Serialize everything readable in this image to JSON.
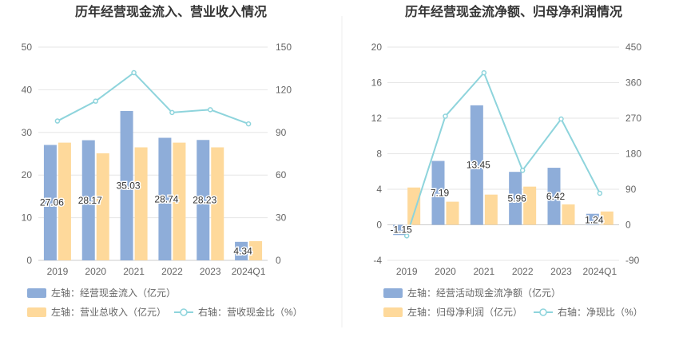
{
  "chart_data": [
    {
      "type": "bar",
      "title": "历年经营现金流入、营业收入情况",
      "categories": [
        "2019",
        "2020",
        "2021",
        "2022",
        "2023",
        "2024Q1"
      ],
      "y_left": {
        "ylim": [
          0,
          50
        ],
        "ticks": [
          "0",
          "10",
          "20",
          "30",
          "40",
          "50"
        ]
      },
      "y_right": {
        "ylim": [
          0,
          150
        ],
        "ticks": [
          "0",
          "30",
          "60",
          "90",
          "120",
          "150"
        ]
      },
      "grid": true,
      "legend_position": "bottom-left",
      "series": [
        {
          "name": "左轴：经营现金流入（亿元）",
          "axis": "left",
          "kind": "bar",
          "color": "#8eadd9",
          "values": [
            27.06,
            28.17,
            35.03,
            28.74,
            28.23,
            4.34
          ],
          "labels": [
            "27.06",
            "28.17",
            "35.03",
            "28.74",
            "28.23",
            "4.34"
          ]
        },
        {
          "name": "左轴：营业总收入（亿元）",
          "axis": "left",
          "kind": "bar",
          "color": "#fed99b",
          "values": [
            27.6,
            25.1,
            26.5,
            27.6,
            26.5,
            4.5
          ]
        },
        {
          "name": "右轴：营收现金比（%）",
          "axis": "right",
          "kind": "line",
          "color": "#8ed4dc",
          "values": [
            98,
            112,
            132,
            104,
            106,
            96
          ]
        }
      ]
    },
    {
      "type": "bar",
      "title": "历年经营现金流净额、归母净利润情况",
      "categories": [
        "2019",
        "2020",
        "2021",
        "2022",
        "2023",
        "2024Q1"
      ],
      "y_left": {
        "ylim": [
          -4,
          20
        ],
        "ticks": [
          "-4",
          "0",
          "4",
          "8",
          "12",
          "16",
          "20"
        ]
      },
      "y_right": {
        "ylim": [
          -90,
          450
        ],
        "ticks": [
          "-90",
          "0",
          "90",
          "180",
          "270",
          "360",
          "450"
        ]
      },
      "grid": true,
      "legend_position": "bottom-left",
      "series": [
        {
          "name": "左轴：经营活动现金流净额（亿元）",
          "axis": "left",
          "kind": "bar",
          "color": "#8eadd9",
          "values": [
            -1.15,
            7.19,
            13.45,
            5.96,
            6.42,
            1.24
          ],
          "labels": [
            "-1.15",
            "7.19",
            "13.45",
            "5.96",
            "6.42",
            "1.24"
          ]
        },
        {
          "name": "左轴：归母净利润（亿元）",
          "axis": "left",
          "kind": "bar",
          "color": "#fed99b",
          "values": [
            4.2,
            2.6,
            3.4,
            4.3,
            2.3,
            1.5
          ]
        },
        {
          "name": "右轴：净现比（%）",
          "axis": "right",
          "kind": "line",
          "color": "#8ed4dc",
          "values": [
            -28,
            275,
            385,
            138,
            268,
            80
          ]
        }
      ]
    }
  ]
}
